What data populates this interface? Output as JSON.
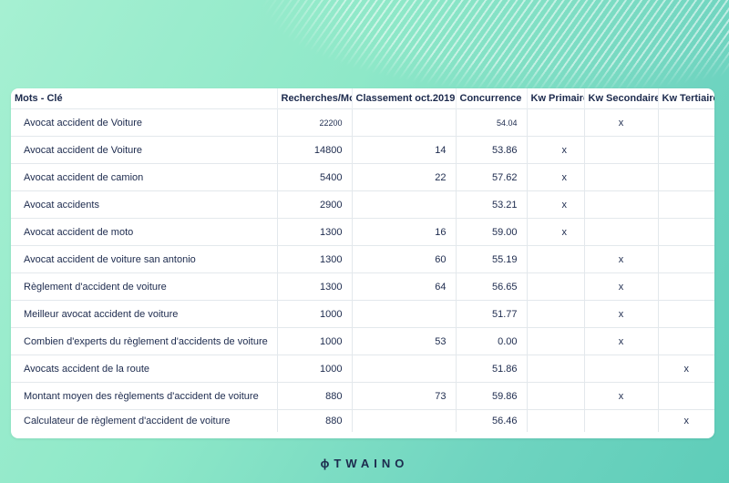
{
  "table": {
    "headers": [
      "Mots - Clé",
      "Recherches/Mo",
      "Classement oct.2019",
      "Concurrence",
      "Kw Primaire",
      "Kw Secondaire",
      "Kw Tertiaire"
    ],
    "rows": [
      {
        "keyword": "Avocat accident de Voiture",
        "searches": "22200",
        "ranking": "",
        "competition": "54.04",
        "primary": "",
        "secondary": "x",
        "tertiary": ""
      },
      {
        "keyword": "Avocat accident de Voiture",
        "searches": "14800",
        "ranking": "14",
        "competition": "53.86",
        "primary": "x",
        "secondary": "",
        "tertiary": ""
      },
      {
        "keyword": "Avocat accident de camion",
        "searches": "5400",
        "ranking": "22",
        "competition": "57.62",
        "primary": "x",
        "secondary": "",
        "tertiary": ""
      },
      {
        "keyword": "Avocat accidents",
        "searches": "2900",
        "ranking": "",
        "competition": "53.21",
        "primary": "x",
        "secondary": "",
        "tertiary": ""
      },
      {
        "keyword": "Avocat accident de moto",
        "searches": "1300",
        "ranking": "16",
        "competition": "59.00",
        "primary": "x",
        "secondary": "",
        "tertiary": ""
      },
      {
        "keyword": "Avocat accident de voiture san antonio",
        "searches": "1300",
        "ranking": "60",
        "competition": "55.19",
        "primary": "",
        "secondary": "x",
        "tertiary": ""
      },
      {
        "keyword": "Règlement d'accident de voiture",
        "searches": "1300",
        "ranking": "64",
        "competition": "56.65",
        "primary": "",
        "secondary": "x",
        "tertiary": ""
      },
      {
        "keyword": "Meilleur avocat accident de voiture",
        "searches": "1000",
        "ranking": "",
        "competition": "51.77",
        "primary": "",
        "secondary": "x",
        "tertiary": ""
      },
      {
        "keyword": "Combien d'experts du règlement d'accidents de voiture",
        "searches": "1000",
        "ranking": "53",
        "competition": "0.00",
        "primary": "",
        "secondary": "x",
        "tertiary": ""
      },
      {
        "keyword": "Avocats accident de la route",
        "searches": "1000",
        "ranking": "",
        "competition": "51.86",
        "primary": "",
        "secondary": "",
        "tertiary": "x"
      },
      {
        "keyword": "Montant moyen des règlements d'accident de voiture",
        "searches": "880",
        "ranking": "73",
        "competition": "59.86",
        "primary": "",
        "secondary": "x",
        "tertiary": ""
      },
      {
        "keyword": "Calculateur de règlement d'accident de voiture",
        "searches": "880",
        "ranking": "",
        "competition": "56.46",
        "primary": "",
        "secondary": "",
        "tertiary": "x"
      }
    ]
  },
  "logo": {
    "text": "TWAINO",
    "glyph": "ϕ"
  },
  "colors": {
    "text": "#1c2a4d",
    "grid": "#e3e8ec",
    "background_start": "#a6f0d2",
    "background_end": "#5ecdb9"
  }
}
